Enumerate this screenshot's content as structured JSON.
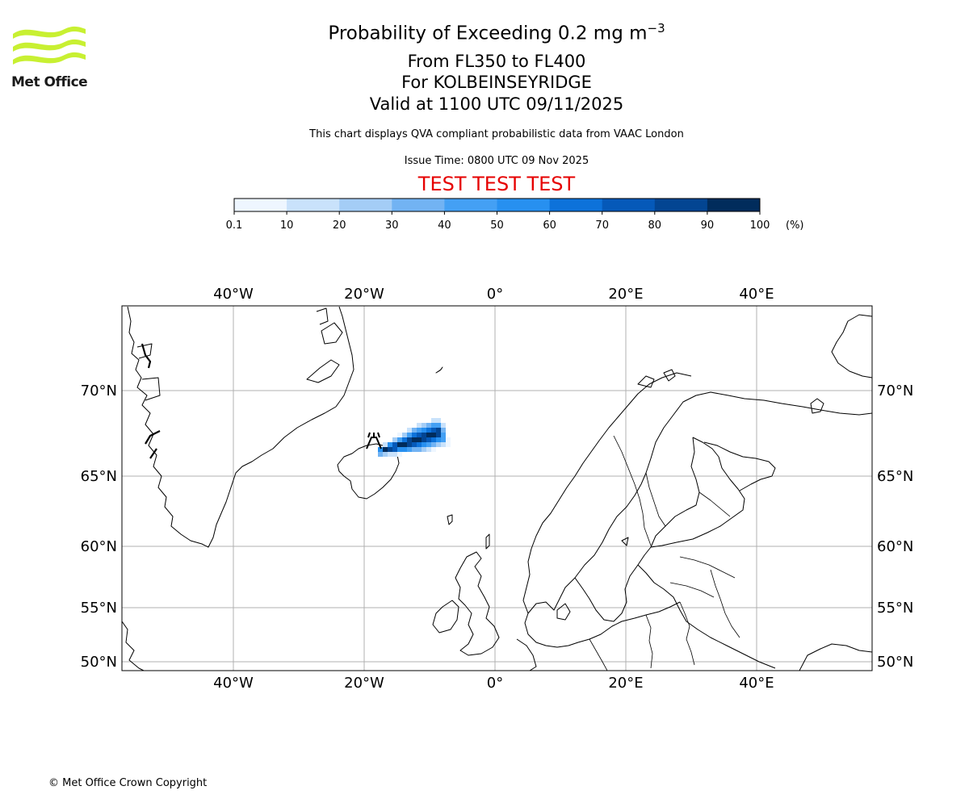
{
  "header": {
    "logo_text": "Met Office",
    "title_main": "Probability of Exceeding 0.2 mg m",
    "title_exponent": "−3",
    "flight_levels": "From FL350 to FL400",
    "location": "For KOLBEINSEYRIDGE",
    "valid_time": "Valid at 1100 UTC 09/11/2025",
    "description": "This chart displays QVA compliant probabilistic data from VAAC London",
    "issue_time": "Issue Time: 0800 UTC 09 Nov 2025",
    "test_banner": "TEST TEST TEST"
  },
  "colorbar": {
    "ticks": [
      "0.1",
      "10",
      "20",
      "30",
      "40",
      "50",
      "60",
      "70",
      "80",
      "90",
      "100"
    ],
    "unit": "(%)",
    "colors": [
      "#eef6ff",
      "#c9e2fb",
      "#a4cdf6",
      "#72b3f3",
      "#44a0f4",
      "#2790f0",
      "#0d72da",
      "#0559b9",
      "#034592",
      "#012c5c"
    ]
  },
  "map": {
    "lon_labels": [
      "40°W",
      "20°W",
      "0°",
      "20°E",
      "40°E"
    ],
    "lat_labels": [
      "70°N",
      "65°N",
      "60°N",
      "55°N",
      "50°N"
    ],
    "ash_marker_icon": "volcano-icon"
  },
  "footer": {
    "copyright": "© Met Office Crown Copyright"
  }
}
